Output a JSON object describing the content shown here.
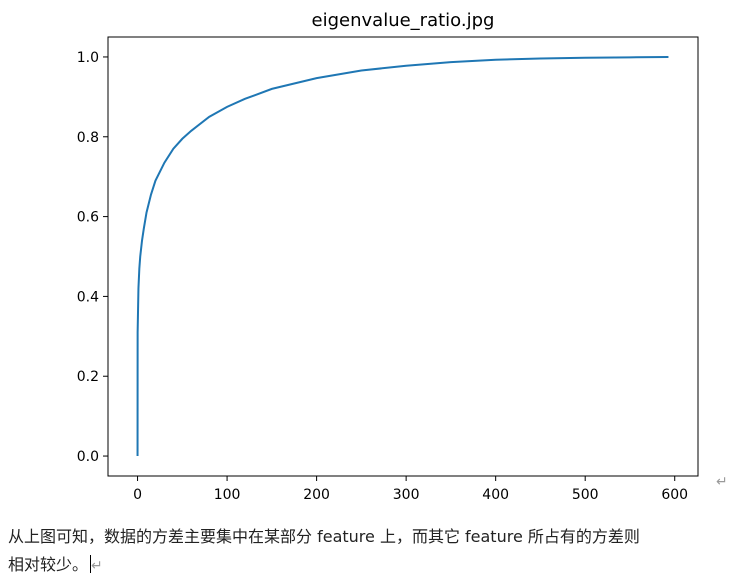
{
  "chart_data": {
    "type": "line",
    "title": "eigenvalue_ratio.jpg",
    "xlabel": "",
    "ylabel": "",
    "xlim": [
      -33,
      626
    ],
    "ylim": [
      -0.05,
      1.05
    ],
    "xticks": [
      0,
      100,
      200,
      300,
      400,
      500,
      600
    ],
    "yticks": [
      0.0,
      0.2,
      0.4,
      0.6,
      0.8,
      1.0
    ],
    "xtick_labels": [
      "0",
      "100",
      "200",
      "300",
      "400",
      "500",
      "600"
    ],
    "ytick_labels": [
      "0.0",
      "0.2",
      "0.4",
      "0.6",
      "0.8",
      "1.0"
    ],
    "grid": false,
    "line_color": "#1f77b4",
    "series": [
      {
        "x": [
          0,
          0.1,
          1,
          2,
          3,
          5,
          7,
          10,
          15,
          20,
          30,
          40,
          50,
          60,
          80,
          100,
          120,
          150,
          200,
          250,
          300,
          350,
          400,
          450,
          500,
          550,
          593
        ],
        "y": [
          0.0,
          0.31,
          0.42,
          0.47,
          0.5,
          0.54,
          0.57,
          0.61,
          0.655,
          0.69,
          0.735,
          0.77,
          0.795,
          0.815,
          0.85,
          0.875,
          0.895,
          0.92,
          0.947,
          0.966,
          0.978,
          0.987,
          0.993,
          0.996,
          0.998,
          0.999,
          1.0
        ]
      }
    ]
  },
  "document": {
    "line1": "从上图可知，数据的方差主要集中在某部分 feature 上，而其它 feature 所占有的方差则",
    "line2": "相对较少。",
    "paragraph_mark": "↵"
  }
}
